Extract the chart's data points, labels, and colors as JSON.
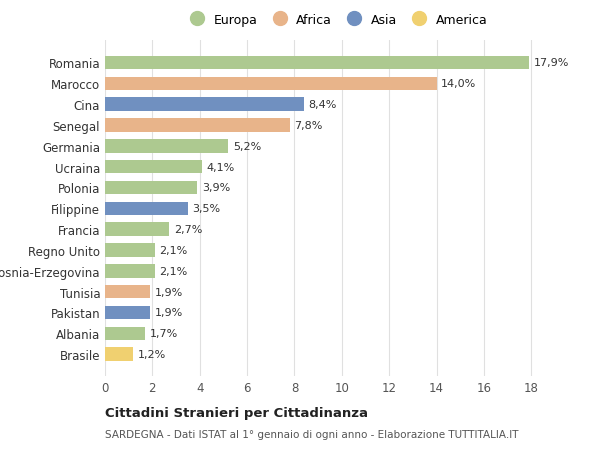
{
  "categories": [
    "Brasile",
    "Albania",
    "Pakistan",
    "Tunisia",
    "Bosnia-Erzegovina",
    "Regno Unito",
    "Francia",
    "Filippine",
    "Polonia",
    "Ucraina",
    "Germania",
    "Senegal",
    "Cina",
    "Marocco",
    "Romania"
  ],
  "values": [
    1.2,
    1.7,
    1.9,
    1.9,
    2.1,
    2.1,
    2.7,
    3.5,
    3.9,
    4.1,
    5.2,
    7.8,
    8.4,
    14.0,
    17.9
  ],
  "continents": [
    "America",
    "Europa",
    "Asia",
    "Africa",
    "Europa",
    "Europa",
    "Europa",
    "Asia",
    "Europa",
    "Europa",
    "Europa",
    "Africa",
    "Asia",
    "Africa",
    "Europa"
  ],
  "labels": [
    "1,2%",
    "1,7%",
    "1,9%",
    "1,9%",
    "2,1%",
    "2,1%",
    "2,7%",
    "3,5%",
    "3,9%",
    "4,1%",
    "5,2%",
    "7,8%",
    "8,4%",
    "14,0%",
    "17,9%"
  ],
  "colors": {
    "Europa": "#adc990",
    "Africa": "#e8b48a",
    "Asia": "#7090c0",
    "America": "#f0d070"
  },
  "legend_order": [
    "Europa",
    "Africa",
    "Asia",
    "America"
  ],
  "background_color": "#ffffff",
  "plot_bg_color": "#ffffff",
  "grid_color": "#e0e0e0",
  "xlim": [
    0,
    19
  ],
  "xticks": [
    0,
    2,
    4,
    6,
    8,
    10,
    12,
    14,
    16,
    18
  ],
  "title": "Cittadini Stranieri per Cittadinanza",
  "subtitle": "SARDEGNA - Dati ISTAT al 1° gennaio di ogni anno - Elaborazione TUTTITALIA.IT"
}
